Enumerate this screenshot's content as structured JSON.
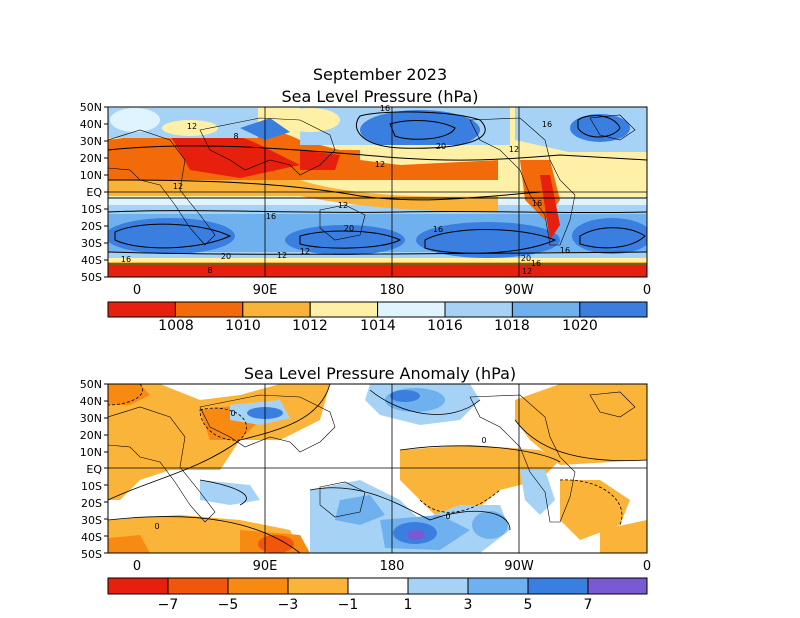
{
  "figure": {
    "main_title": "September 2023",
    "panel1_title": "Sea Level Pressure (hPa)",
    "panel2_title": "Sea Level Pressure Anomaly (hPa)"
  },
  "axes": {
    "lat_labels": [
      "50N",
      "40N",
      "30N",
      "20N",
      "10N",
      "EQ",
      "10S",
      "20S",
      "30S",
      "40S",
      "50S"
    ],
    "lon_labels": [
      "0",
      "90E",
      "180",
      "90W",
      "0"
    ]
  },
  "colorbar1": {
    "labels": [
      "1008",
      "1010",
      "1012",
      "1014",
      "1016",
      "1018",
      "1020"
    ],
    "colors": [
      "#e6200c",
      "#f26a0a",
      "#f9b23a",
      "#fff0a8",
      "#dff4ff",
      "#a6d3f5",
      "#6fb0ee",
      "#3a7fe0"
    ]
  },
  "colorbar2": {
    "labels": [
      "−7",
      "−5",
      "−3",
      "−1",
      "1",
      "3",
      "5",
      "7"
    ],
    "colors": [
      "#e6200c",
      "#f2560a",
      "#f88a12",
      "#fbb43a",
      "#ffffff",
      "#a6d3f5",
      "#6fb0ee",
      "#3a7fe0",
      "#7a5ad2"
    ]
  },
  "contour_labels": {
    "panel1": [
      "16",
      "12",
      "8",
      "16",
      "20",
      "12",
      "12",
      "12",
      "16",
      "20",
      "12",
      "16",
      "16",
      "20",
      "12",
      "12",
      "16",
      "16",
      "20",
      "16",
      "12",
      "8"
    ],
    "panel2": [
      "0",
      "0",
      "0",
      "0"
    ]
  }
}
